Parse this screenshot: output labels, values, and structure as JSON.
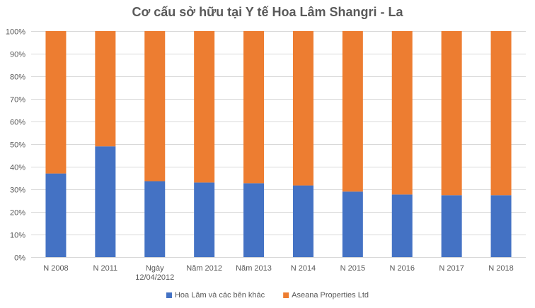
{
  "chart_data": {
    "type": "bar",
    "stacked": true,
    "title": "Cơ cấu sở hữu tại Y tế Hoa Lâm Shangri - La",
    "categories": [
      [
        "N 2008"
      ],
      [
        "N 2011"
      ],
      [
        "Ngày",
        "12/04/2012"
      ],
      [
        "Năm 2012"
      ],
      [
        "Năm 2013"
      ],
      [
        "N 2014"
      ],
      [
        "N 2015"
      ],
      [
        "N 2016"
      ],
      [
        "N 2017"
      ],
      [
        "N 2018"
      ]
    ],
    "series": [
      {
        "name": "Hoa Lâm  và các bên khác",
        "color": "#4472C4",
        "values": [
          37,
          49,
          33.6,
          33,
          32.7,
          31.7,
          29,
          27.7,
          27.4,
          27.4
        ]
      },
      {
        "name": "Aseana Properties Ltd",
        "color": "#ED7D31",
        "values": [
          63,
          51,
          66.4,
          67,
          67.3,
          68.3,
          71,
          72.3,
          72.6,
          72.6
        ]
      }
    ],
    "y_ticks": [
      "0%",
      "10%",
      "20%",
      "30%",
      "40%",
      "50%",
      "60%",
      "70%",
      "80%",
      "90%",
      "100%"
    ],
    "ylim": [
      0,
      100
    ],
    "xlabel": "",
    "ylabel": "",
    "grid": true,
    "legend_position": "bottom",
    "gridline_color": "#D9D9D9"
  }
}
